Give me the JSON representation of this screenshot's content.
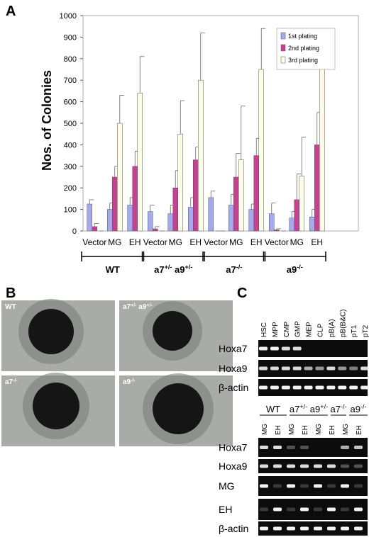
{
  "panel_labels": [
    "A",
    "B",
    "C"
  ],
  "chart_data": {
    "type": "bar",
    "y_label": "Nos. of Colonies",
    "categories": [
      "Vector",
      "MG",
      "EH",
      "Vector",
      "MG",
      "EH",
      "Vector",
      "MG",
      "EH",
      "Vector",
      "MG",
      "EH"
    ],
    "groups": [
      {
        "label": [
          {
            "text": "WT"
          }
        ]
      },
      {
        "label": [
          {
            "text": "a7"
          },
          {
            "text": "+/-",
            "sup": true
          },
          {
            "text": " a9"
          },
          {
            "text": "+/-",
            "sup": true
          }
        ]
      },
      {
        "label": [
          {
            "text": "a7"
          },
          {
            "text": "-/-",
            "sup": true
          }
        ]
      },
      {
        "label": [
          {
            "text": "a9"
          },
          {
            "text": "-/-",
            "sup": true
          }
        ]
      }
    ],
    "series": [
      {
        "name": "1st plating",
        "color": "#a3aaf0",
        "values": [
          125,
          100,
          120,
          90,
          80,
          110,
          155,
          120,
          100,
          80,
          60,
          65
        ],
        "errors": [
          20,
          30,
          35,
          30,
          40,
          45,
          30,
          50,
          25,
          50,
          30,
          35
        ]
      },
      {
        "name": "2nd plating",
        "color": "#c8408f",
        "values": [
          20,
          250,
          300,
          10,
          200,
          330,
          0,
          250,
          350,
          5,
          145,
          400
        ],
        "errors": [
          15,
          50,
          70,
          10,
          80,
          60,
          0,
          110,
          80,
          5,
          120,
          150
        ]
      },
      {
        "name": "3rd plating",
        "color": "#fdfde6",
        "values": [
          0,
          500,
          640,
          0,
          450,
          700,
          0,
          330,
          750,
          0,
          255,
          760
        ],
        "errors": [
          0,
          130,
          170,
          0,
          155,
          220,
          0,
          250,
          190,
          0,
          180,
          130
        ]
      }
    ],
    "ylim": [
      0,
      1000
    ],
    "yticks": [
      0,
      100,
      200,
      300,
      400,
      500,
      600,
      700,
      800,
      900,
      1000
    ],
    "legend": "upper-right"
  },
  "micrographs": [
    {
      "label": [
        {
          "text": "WT"
        }
      ]
    },
    {
      "label": [
        {
          "text": "a7"
        },
        {
          "text": "+/-",
          "sup": true
        },
        {
          "text": " a9"
        },
        {
          "text": "+/-",
          "sup": true
        }
      ]
    },
    {
      "label": [
        {
          "text": "a7"
        },
        {
          "text": "-/-",
          "sup": true
        }
      ]
    },
    {
      "label": [
        {
          "text": "a9"
        },
        {
          "text": "-/-",
          "sup": true
        }
      ]
    }
  ],
  "gel_top": {
    "lanes": [
      "HSC",
      "MPP",
      "CMP",
      "GMP",
      "MEP",
      "CLP",
      "pB(A)",
      "pB(B&C)",
      "pT1",
      "pT2"
    ],
    "rows": [
      "Hoxa7",
      "Hoxa9",
      "β-actin"
    ]
  },
  "gel_bottom": {
    "groups": [
      {
        "label": [
          {
            "text": "WT"
          }
        ],
        "lanes": [
          "MG",
          "EH"
        ]
      },
      {
        "label": [
          {
            "text": "a7"
          },
          {
            "text": "+/-",
            "sup": true
          },
          {
            "text": " a9"
          },
          {
            "text": "+/-",
            "sup": true
          }
        ],
        "lanes": [
          "MG",
          "EH"
        ]
      },
      {
        "label": [
          {
            "text": "a7"
          },
          {
            "text": "-/-",
            "sup": true
          }
        ],
        "lanes": [
          "MG",
          "EH"
        ]
      },
      {
        "label": [
          {
            "text": "a9"
          },
          {
            "text": "-/-",
            "sup": true
          }
        ],
        "lanes": [
          "MG",
          "EH"
        ]
      }
    ],
    "rows": [
      "Hoxa7",
      "Hoxa9",
      "MG",
      "EH",
      "β-actin"
    ]
  }
}
